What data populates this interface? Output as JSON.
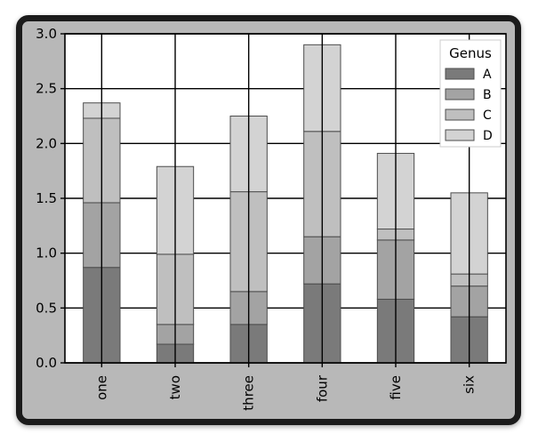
{
  "chart_data": {
    "type": "bar",
    "stacked": true,
    "title": "",
    "xlabel": "",
    "ylabel": "",
    "categories": [
      "one",
      "two",
      "three",
      "four",
      "five",
      "six"
    ],
    "series": [
      {
        "name": "A",
        "values": [
          0.87,
          0.17,
          0.35,
          0.72,
          0.58,
          0.42
        ],
        "color": "#7a7a7a"
      },
      {
        "name": "B",
        "values": [
          0.59,
          0.18,
          0.3,
          0.43,
          0.54,
          0.28
        ],
        "color": "#a3a3a3"
      },
      {
        "name": "C",
        "values": [
          0.77,
          0.64,
          0.91,
          0.96,
          0.1,
          0.11
        ],
        "color": "#bfbfbf"
      },
      {
        "name": "D",
        "values": [
          0.14,
          0.8,
          0.69,
          0.79,
          0.69,
          0.74
        ],
        "color": "#d3d3d3"
      }
    ],
    "ylim": [
      0,
      3.0
    ],
    "yticks": [
      "0.0",
      "0.5",
      "1.0",
      "1.5",
      "2.0",
      "2.5",
      "3.0"
    ],
    "grid": true,
    "legend": {
      "title": "Genus",
      "position": "top-right"
    }
  }
}
